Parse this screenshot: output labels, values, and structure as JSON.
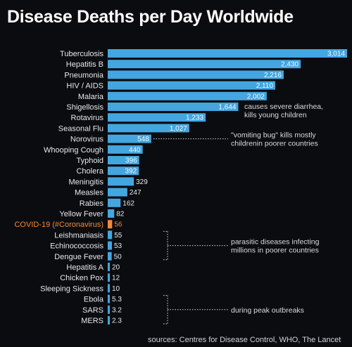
{
  "chart_data": {
    "type": "bar",
    "orientation": "horizontal",
    "title": "Disease Deaths per Day Worldwide",
    "source": "sources: Centres for Disease Control, WHO, The Lancet",
    "xlim": [
      0,
      3014
    ],
    "grid": false,
    "colors": {
      "bar": "#43a6e0",
      "highlight": "#f08a3c",
      "label": "#e6e8ec",
      "highlight_label": "#f08a3c",
      "annotation": "#d8dbe0"
    },
    "categories": [
      "Tuberculosis",
      "Hepatitis B",
      "Pneumonia",
      "HIV / AIDS",
      "Malaria",
      "Shigellosis",
      "Rotavirus",
      "Seasonal Flu",
      "Norovirus",
      "Whooping Cough",
      "Typhoid",
      "Cholera",
      "Meningitis",
      "Measles",
      "Rabies",
      "Yellow Fever",
      "COVID-19 (#Coronavirus)",
      "Leishmaniasis",
      "Echinococcosis",
      "Dengue Fever",
      "Hepatitis A",
      "Chicken Pox",
      "Sleeping Sickness",
      "Ebola",
      "SARS",
      "MERS"
    ],
    "values": [
      3014,
      2430,
      2216,
      2110,
      2002,
      1644,
      1233,
      1027,
      548,
      440,
      396,
      392,
      329,
      247,
      162,
      82,
      56,
      55,
      53,
      50,
      20,
      12,
      10,
      5.3,
      3.2,
      2.3
    ],
    "value_labels": [
      "3,014",
      "2,430",
      "2,216",
      "2,110",
      "2,002",
      "1,644",
      "1,233",
      "1,027",
      "548",
      "440",
      "396",
      "392",
      "329",
      "247",
      "162",
      "82",
      "56",
      "55",
      "53",
      "50",
      "20",
      "12",
      "10",
      "5.3",
      "3.2",
      "2.3"
    ],
    "highlight": "COVID-19 (#Coronavirus)",
    "annotations": [
      {
        "text": "causes severe diarrhea, kills young children",
        "lines": [
          "causes severe diarrhea,",
          "kills young children"
        ],
        "rows": [
          "Shigellosis"
        ]
      },
      {
        "text": "\"vomiting bug\" kills mostly childrenin poorer countries",
        "lines": [
          "\"vomiting bug\" kills mostly",
          "childrenin poorer countries"
        ],
        "rows": [
          "Norovirus"
        ]
      },
      {
        "text": "parasitic diseases infecting millions in poorer countries",
        "lines": [
          "parasitic diseases infecting",
          "millions in poorer countries"
        ],
        "rows": [
          "Leishmaniasis",
          "Echinococcosis",
          "Dengue Fever"
        ]
      },
      {
        "text": "during peak outbreaks",
        "lines": [
          "during peak outbreaks"
        ],
        "rows": [
          "Ebola",
          "SARS",
          "MERS"
        ]
      }
    ]
  }
}
